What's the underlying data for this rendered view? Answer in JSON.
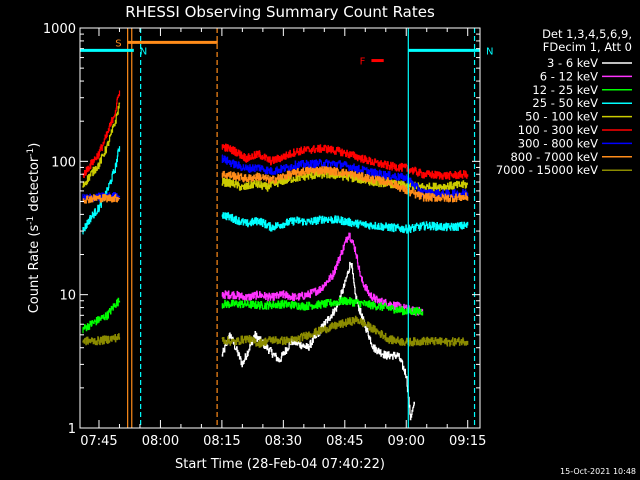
{
  "chart_data": {
    "type": "line",
    "title": "RHESSI Observing Summary Count Rates",
    "xlabel": "Start Time (28-Feb-04 07:40:22)",
    "ylabel": "Count Rate (s⁻¹ detector⁻¹)",
    "ylabel_main": "Count Rate (s",
    "ylabel_sup1": "-1",
    "ylabel_mid": " detector",
    "ylabel_sup2": "-1",
    "ylabel_end": ")",
    "y_scale": "log",
    "ylim": [
      1,
      1000
    ],
    "y_ticks": [
      {
        "value": 1,
        "label": "1"
      },
      {
        "value": 10,
        "label": "10"
      },
      {
        "value": 100,
        "label": "100"
      },
      {
        "value": 1000,
        "label": "1000"
      }
    ],
    "xlim": [
      "07:40:22",
      "09:18:00"
    ],
    "x_ticks": [
      {
        "value": "07:45",
        "label": "07:45"
      },
      {
        "value": "08:00",
        "label": "08:00"
      },
      {
        "value": "08:15",
        "label": "08:15"
      },
      {
        "value": "08:30",
        "label": "08:30"
      },
      {
        "value": "08:45",
        "label": "08:45"
      },
      {
        "value": "09:00",
        "label": "09:00"
      },
      {
        "value": "09:15",
        "label": "09:15"
      }
    ],
    "legend_header": [
      "Det 1,3,4,5,6,9,",
      "FDecim 1, Att 0"
    ],
    "legend_position": "right",
    "timestamp": "15-Oct-2021 10:48",
    "annotations": [
      {
        "label": "S",
        "color": "#ff8c1a",
        "start": "07:52:00",
        "end": "08:14:00",
        "y": 780
      },
      {
        "label": "N",
        "color": "#00ffff",
        "start": "07:40:22",
        "end": "07:53:30",
        "y": 680
      },
      {
        "label": "N",
        "color": "#00ffff",
        "start": "09:00:30",
        "end": "09:18:00",
        "y": 680
      },
      {
        "label": "F",
        "color": "#ff0000",
        "start": "08:51:30",
        "end": "08:54:30",
        "y": 570
      }
    ],
    "vertical_markers": [
      {
        "time": "07:52:00",
        "color": "#ff8c1a",
        "style": "solid"
      },
      {
        "time": "07:53:00",
        "color": "#ff8c1a",
        "style": "solid"
      },
      {
        "time": "07:55:10",
        "color": "#00ffff",
        "style": "dashed"
      },
      {
        "time": "08:13:50",
        "color": "#ff8c1a",
        "style": "dashed"
      },
      {
        "time": "09:00:30",
        "color": "#00ffff",
        "style": "solid"
      },
      {
        "time": "09:16:40",
        "color": "#00ffff",
        "style": "dashed"
      }
    ],
    "series": [
      {
        "name": "3 - 6 keV",
        "color": "#ffffff",
        "segments": [
          [
            [
              "08:15:00",
              3.5
            ],
            [
              "08:17:00",
              5
            ],
            [
              "08:20:00",
              3
            ],
            [
              "08:23:00",
              5
            ],
            [
              "08:26:00",
              4
            ],
            [
              "08:29:00",
              3.2
            ],
            [
              "08:32:00",
              4.5
            ],
            [
              "08:36:00",
              4
            ],
            [
              "08:40:00",
              6
            ],
            [
              "08:43:00",
              8
            ],
            [
              "08:45:00",
              12
            ],
            [
              "08:46:30",
              18
            ],
            [
              "08:47:30",
              10
            ],
            [
              "08:49:00",
              7
            ],
            [
              "08:52:00",
              4
            ],
            [
              "08:55:00",
              3.5
            ],
            [
              "08:58:00",
              3.5
            ],
            [
              "09:00:00",
              2.5
            ],
            [
              "09:01:00",
              1.2
            ],
            [
              "09:02:00",
              1.5
            ]
          ]
        ]
      },
      {
        "name": "6 - 12 keV",
        "color": "#ff33ff",
        "segments": [
          [
            [
              "08:15:00",
              10
            ],
            [
              "08:18:00",
              10
            ],
            [
              "08:21:00",
              9.5
            ],
            [
              "08:24:00",
              10
            ],
            [
              "08:27:00",
              9.5
            ],
            [
              "08:30:00",
              10
            ],
            [
              "08:33:00",
              9.5
            ],
            [
              "08:36:00",
              10
            ],
            [
              "08:39:00",
              11
            ],
            [
              "08:42:00",
              14
            ],
            [
              "08:44:00",
              20
            ],
            [
              "08:46:00",
              29
            ],
            [
              "08:47:30",
              22
            ],
            [
              "08:49:00",
              13
            ],
            [
              "08:51:00",
              10
            ],
            [
              "08:53:00",
              9
            ],
            [
              "08:56:00",
              8.5
            ],
            [
              "08:59:00",
              8
            ],
            [
              "09:02:00",
              7.5
            ],
            [
              "09:04:00",
              7.5
            ]
          ]
        ]
      },
      {
        "name": "12 - 25 keV",
        "color": "#00ff00",
        "segments": [
          [
            [
              "07:41:00",
              5.5
            ],
            [
              "07:43:00",
              6
            ],
            [
              "07:45:00",
              6.5
            ],
            [
              "07:47:00",
              7
            ],
            [
              "07:49:00",
              8.5
            ],
            [
              "07:50:00",
              9
            ]
          ],
          [
            [
              "08:15:00",
              8.5
            ],
            [
              "08:20:00",
              8.5
            ],
            [
              "08:25:00",
              8.3
            ],
            [
              "08:30:00",
              8.5
            ],
            [
              "08:35:00",
              8.2
            ],
            [
              "08:40:00",
              8.5
            ],
            [
              "08:45:00",
              9
            ],
            [
              "08:50:00",
              8.5
            ],
            [
              "08:55:00",
              8
            ],
            [
              "09:00:00",
              7.5
            ],
            [
              "09:04:00",
              7.5
            ]
          ]
        ]
      },
      {
        "name": "25 - 50 keV",
        "color": "#00ffff",
        "segments": [
          [
            [
              "07:41:00",
              30
            ],
            [
              "07:43:00",
              38
            ],
            [
              "07:45:00",
              45
            ],
            [
              "07:47:00",
              60
            ],
            [
              "07:49:00",
              90
            ],
            [
              "07:50:00",
              130
            ]
          ],
          [
            [
              "08:15:00",
              40
            ],
            [
              "08:18:00",
              37
            ],
            [
              "08:21:00",
              34
            ],
            [
              "08:24:00",
              36
            ],
            [
              "08:27:00",
              32
            ],
            [
              "08:30:00",
              34
            ],
            [
              "08:33:00",
              36
            ],
            [
              "08:36:00",
              35
            ],
            [
              "08:40:00",
              37
            ],
            [
              "08:44:00",
              36
            ],
            [
              "08:48:00",
              34
            ],
            [
              "08:52:00",
              33
            ],
            [
              "08:56:00",
              32
            ],
            [
              "09:00:00",
              31
            ],
            [
              "09:05:00",
              33
            ],
            [
              "09:10:00",
              32
            ],
            [
              "09:15:00",
              33
            ]
          ]
        ]
      },
      {
        "name": "50 - 100 keV",
        "color": "#cccc00",
        "segments": [
          [
            [
              "07:41:00",
              65
            ],
            [
              "07:43:00",
              80
            ],
            [
              "07:45:00",
              95
            ],
            [
              "07:47:00",
              130
            ],
            [
              "07:49:00",
              200
            ],
            [
              "07:50:00",
              270
            ]
          ],
          [
            [
              "08:15:00",
              70
            ],
            [
              "08:18:00",
              68
            ],
            [
              "08:20:00",
              63
            ],
            [
              "08:23:00",
              68
            ],
            [
              "08:26:00",
              64
            ],
            [
              "08:29:00",
              70
            ],
            [
              "08:32:00",
              74
            ],
            [
              "08:36:00",
              78
            ],
            [
              "08:40:00",
              80
            ],
            [
              "08:44:00",
              78
            ],
            [
              "08:48:00",
              74
            ],
            [
              "08:52:00",
              70
            ],
            [
              "08:56:00",
              68
            ],
            [
              "09:00:00",
              66
            ],
            [
              "09:05:00",
              64
            ],
            [
              "09:10:00",
              65
            ],
            [
              "09:15:00",
              67
            ]
          ]
        ]
      },
      {
        "name": "100 - 300 keV",
        "color": "#ff0000",
        "segments": [
          [
            [
              "07:41:00",
              78
            ],
            [
              "07:43:00",
              95
            ],
            [
              "07:45:00",
              115
            ],
            [
              "07:47:00",
              160
            ],
            [
              "07:49:00",
              240
            ],
            [
              "07:50:00",
              340
            ]
          ],
          [
            [
              "08:15:00",
              130
            ],
            [
              "08:18:00",
              120
            ],
            [
              "08:21:00",
              105
            ],
            [
              "08:24:00",
              113
            ],
            [
              "08:27:00",
              100
            ],
            [
              "08:30:00",
              108
            ],
            [
              "08:33:00",
              118
            ],
            [
              "08:36:00",
              122
            ],
            [
              "08:40:00",
              125
            ],
            [
              "08:44:00",
              118
            ],
            [
              "08:48:00",
              108
            ],
            [
              "08:52:00",
              98
            ],
            [
              "08:56:00",
              92
            ],
            [
              "09:00:00",
              89
            ],
            [
              "09:04:00",
              80
            ],
            [
              "09:10:00",
              78
            ],
            [
              "09:15:00",
              80
            ]
          ]
        ]
      },
      {
        "name": "300 - 800 keV",
        "color": "#0000ff",
        "segments": [
          [
            [
              "07:41:00",
              53
            ],
            [
              "07:45:00",
              54
            ],
            [
              "07:50:00",
              55
            ]
          ],
          [
            [
              "08:15:00",
              105
            ],
            [
              "08:18:00",
              95
            ],
            [
              "08:21:00",
              88
            ],
            [
              "08:24:00",
              90
            ],
            [
              "08:27:00",
              84
            ],
            [
              "08:30:00",
              88
            ],
            [
              "08:33:00",
              94
            ],
            [
              "08:36:00",
              95
            ],
            [
              "08:40:00",
              97
            ],
            [
              "08:44:00",
              95
            ],
            [
              "08:48:00",
              88
            ],
            [
              "08:52:00",
              82
            ],
            [
              "08:56:00",
              78
            ],
            [
              "09:00:00",
              75
            ],
            [
              "09:04:00",
              58
            ],
            [
              "09:10:00",
              57
            ],
            [
              "09:15:00",
              58
            ]
          ]
        ]
      },
      {
        "name": "800 - 7000 keV",
        "color": "#ff8c1a",
        "segments": [
          [
            [
              "07:41:00",
              52
            ],
            [
              "07:45:00",
              53
            ],
            [
              "07:50:00",
              53
            ]
          ],
          [
            [
              "08:15:00",
              80
            ],
            [
              "08:18:00",
              78
            ],
            [
              "08:21:00",
              74
            ],
            [
              "08:24:00",
              77
            ],
            [
              "08:27:00",
              72
            ],
            [
              "08:30:00",
              77
            ],
            [
              "08:33:00",
              82
            ],
            [
              "08:36:00",
              85
            ],
            [
              "08:40:00",
              86
            ],
            [
              "08:44:00",
              83
            ],
            [
              "08:48:00",
              78
            ],
            [
              "08:52:00",
              73
            ],
            [
              "08:56:00",
              70
            ],
            [
              "09:00:00",
              60
            ],
            [
              "09:04:00",
              54
            ],
            [
              "09:10:00",
              53
            ],
            [
              "09:15:00",
              54
            ]
          ]
        ]
      },
      {
        "name": "7000 - 15000 keV",
        "color": "#8b8b00",
        "segments": [
          [
            [
              "07:41:00",
              4.5
            ],
            [
              "07:45:00",
              4.5
            ],
            [
              "07:50:00",
              4.8
            ]
          ],
          [
            [
              "08:15:00",
              4.6
            ],
            [
              "08:18:00",
              4.4
            ],
            [
              "08:21:00",
              4.7
            ],
            [
              "08:24:00",
              4.3
            ],
            [
              "08:27:00",
              4.6
            ],
            [
              "08:30:00",
              4.5
            ],
            [
              "08:33:00",
              4.6
            ],
            [
              "08:36:00",
              5
            ],
            [
              "08:40:00",
              5.5
            ],
            [
              "08:44:00",
              6
            ],
            [
              "08:48:00",
              6.5
            ],
            [
              "08:52:00",
              5.5
            ],
            [
              "08:56:00",
              4.6
            ],
            [
              "09:00:00",
              4.4
            ],
            [
              "09:05:00",
              4.5
            ],
            [
              "09:10:00",
              4.4
            ],
            [
              "09:15:00",
              4.5
            ]
          ]
        ]
      }
    ]
  }
}
